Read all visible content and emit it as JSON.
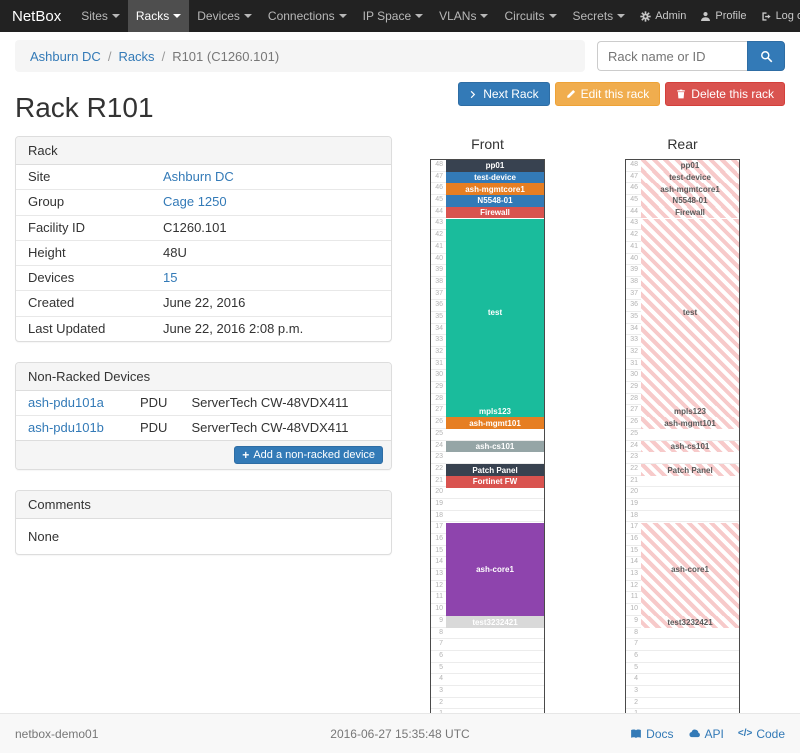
{
  "navbar": {
    "brand": "NetBox",
    "items": [
      "Sites",
      "Racks",
      "Devices",
      "Connections",
      "IP Space",
      "VLANs",
      "Circuits",
      "Secrets"
    ],
    "active_item": "Racks",
    "admin_label": "Admin",
    "profile_label": "Profile",
    "logout_label": "Log out"
  },
  "breadcrumb": {
    "items": [
      {
        "label": "Ashburn DC",
        "link": true
      },
      {
        "label": "Racks",
        "link": true
      },
      {
        "label": "R101 (C1260.101)",
        "link": false
      }
    ]
  },
  "search": {
    "placeholder": "Rack name or ID"
  },
  "actions": {
    "next": "Next Rack",
    "edit": "Edit this rack",
    "delete": "Delete this rack"
  },
  "page_title": "Rack R101",
  "rack_panel": {
    "title": "Rack",
    "rows": [
      {
        "label": "Site",
        "value": "Ashburn DC",
        "link": true
      },
      {
        "label": "Group",
        "value": "Cage 1250",
        "link": true
      },
      {
        "label": "Facility ID",
        "value": "C1260.101",
        "link": false
      },
      {
        "label": "Height",
        "value": "48U",
        "link": false
      },
      {
        "label": "Devices",
        "value": "15",
        "link": true
      },
      {
        "label": "Created",
        "value": "June 22, 2016",
        "link": false
      },
      {
        "label": "Last Updated",
        "value": "June 22, 2016 2:08 p.m.",
        "link": false
      }
    ]
  },
  "non_racked": {
    "title": "Non-Racked Devices",
    "rows": [
      {
        "name": "ash-pdu101a",
        "role": "PDU",
        "type": "ServerTech CW-48VDX411"
      },
      {
        "name": "ash-pdu101b",
        "role": "PDU",
        "type": "ServerTech CW-48VDX411"
      }
    ],
    "add_button": "Add a non-racked device"
  },
  "comments": {
    "title": "Comments",
    "body": "None"
  },
  "elevation": {
    "units": 48,
    "front_label": "Front",
    "rear_label": "Rear",
    "front_devices": [
      {
        "name": "pp01",
        "u": 48,
        "h": 1,
        "color": "#384250",
        "text": "#ffffff"
      },
      {
        "name": "test-device",
        "u": 47,
        "h": 1,
        "color": "#337ab7",
        "text": "#ffffff"
      },
      {
        "name": "ash-mgmtcore1",
        "u": 46,
        "h": 1,
        "color": "#e67e22",
        "text": "#ffffff"
      },
      {
        "name": "N5548-01",
        "u": 45,
        "h": 1,
        "color": "#337ab7",
        "text": "#ffffff"
      },
      {
        "name": "Firewall",
        "u": 44,
        "h": 1,
        "color": "#d9534f",
        "text": "#ffffff"
      },
      {
        "name": "test",
        "u": 43,
        "h": 16,
        "color": "#1abc9c",
        "text": "#ffffff"
      },
      {
        "name": "mpls123",
        "u": 27,
        "h": 1,
        "color": "#1abc9c",
        "text": "#ffffff"
      },
      {
        "name": "ash-mgmt101",
        "u": 26,
        "h": 1,
        "color": "#e67e22",
        "text": "#ffffff"
      },
      {
        "name": "ash-cs101",
        "u": 24,
        "h": 1,
        "color": "#95a5a6",
        "text": "#ffffff"
      },
      {
        "name": "Patch Panel",
        "u": 22,
        "h": 1,
        "color": "#384250",
        "text": "#ffffff"
      },
      {
        "name": "Fortinet FW",
        "u": 21,
        "h": 1,
        "color": "#d9534f",
        "text": "#ffffff"
      },
      {
        "name": "ash-core1",
        "u": 17,
        "h": 8,
        "color": "#8e44ad",
        "text": "#ffffff"
      },
      {
        "name": "test3232421",
        "u": 9,
        "h": 1,
        "color": "#d9d9d9",
        "text": "#ffffff"
      }
    ],
    "rear_devices": [
      {
        "name": "pp01",
        "u": 48,
        "h": 1
      },
      {
        "name": "test-device",
        "u": 47,
        "h": 1
      },
      {
        "name": "ash-mgmtcore1",
        "u": 46,
        "h": 1
      },
      {
        "name": "N5548-01",
        "u": 45,
        "h": 1
      },
      {
        "name": "Firewall",
        "u": 44,
        "h": 1
      },
      {
        "name": "test",
        "u": 43,
        "h": 16
      },
      {
        "name": "mpls123",
        "u": 27,
        "h": 1
      },
      {
        "name": "ash-mgmt101",
        "u": 26,
        "h": 1
      },
      {
        "name": "ash-cs101",
        "u": 24,
        "h": 1
      },
      {
        "name": "Patch Panel",
        "u": 22,
        "h": 1
      },
      {
        "name": "ash-core1",
        "u": 17,
        "h": 8
      },
      {
        "name": "test3232421",
        "u": 9,
        "h": 1
      }
    ]
  },
  "footer": {
    "hostname": "netbox-demo01",
    "timestamp": "2016-06-27 15:35:48 UTC",
    "docs": "Docs",
    "api": "API",
    "code": "Code"
  },
  "colors": {
    "primary": "#337ab7",
    "warning": "#f0ad4e",
    "danger": "#d9534f",
    "navbar_bg": "#222222",
    "rear_stripe": "#f7caca"
  },
  "icons": {
    "gear": "gear-icon",
    "user": "user-icon",
    "logout": "logout-icon",
    "search": "search-icon",
    "chevron_right": "chevron-right-icon",
    "chevron_down": "chevron-down-icon",
    "pencil": "pencil-icon",
    "trash": "trash-icon",
    "plus": "plus-icon",
    "docs": "book-icon",
    "api": "cloud-icon",
    "code": "code-icon"
  }
}
